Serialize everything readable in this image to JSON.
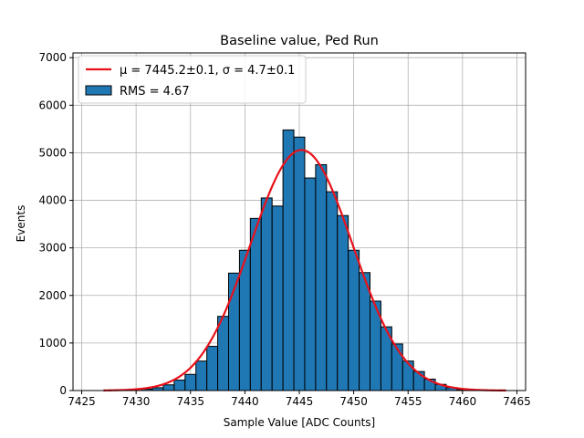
{
  "chart_data": {
    "type": "bar",
    "title": "Baseline value, Ped Run",
    "xlabel": "Sample Value [ADC Counts]",
    "ylabel": "Events",
    "xlim": [
      7424.2,
      7465.8
    ],
    "ylim": [
      0,
      7100
    ],
    "xticks": [
      7425,
      7430,
      7435,
      7440,
      7445,
      7450,
      7455,
      7460,
      7465
    ],
    "yticks": [
      0,
      1000,
      2000,
      3000,
      4000,
      5000,
      6000,
      7000
    ],
    "grid": true,
    "legend_position": "upper-left",
    "bin_width": 1,
    "bins": [
      {
        "x": 7431,
        "y": 30
      },
      {
        "x": 7432,
        "y": 60
      },
      {
        "x": 7433,
        "y": 120
      },
      {
        "x": 7434,
        "y": 220
      },
      {
        "x": 7435,
        "y": 340
      },
      {
        "x": 7436,
        "y": 620
      },
      {
        "x": 7437,
        "y": 930
      },
      {
        "x": 7438,
        "y": 1560
      },
      {
        "x": 7439,
        "y": 2470
      },
      {
        "x": 7440,
        "y": 2950
      },
      {
        "x": 7441,
        "y": 3620
      },
      {
        "x": 7442,
        "y": 4050
      },
      {
        "x": 7443,
        "y": 3880
      },
      {
        "x": 7444,
        "y": 5480
      },
      {
        "x": 7445,
        "y": 5330
      },
      {
        "x": 7446,
        "y": 4470
      },
      {
        "x": 7447,
        "y": 4750
      },
      {
        "x": 7448,
        "y": 4180
      },
      {
        "x": 7449,
        "y": 3680
      },
      {
        "x": 7450,
        "y": 2950
      },
      {
        "x": 7451,
        "y": 2480
      },
      {
        "x": 7452,
        "y": 1880
      },
      {
        "x": 7453,
        "y": 1340
      },
      {
        "x": 7454,
        "y": 980
      },
      {
        "x": 7455,
        "y": 620
      },
      {
        "x": 7456,
        "y": 400
      },
      {
        "x": 7457,
        "y": 240
      },
      {
        "x": 7458,
        "y": 130
      },
      {
        "x": 7459,
        "y": 60
      },
      {
        "x": 7460,
        "y": 20
      }
    ],
    "fit": {
      "mu": 7445.2,
      "sigma": 4.7,
      "peak": 5060,
      "x_range": [
        7427,
        7464
      ]
    },
    "legend": [
      {
        "label": "$\\mu = 7445.2{\\pm}0.1,\\,\\sigma = 4.7{\\pm}0.1$",
        "display": "μ = 7445.2±0.1, σ = 4.7±0.1",
        "kind": "line",
        "color": "#e8111a"
      },
      {
        "label": "RMS = 4.67",
        "kind": "patch",
        "color": "#1f77b4"
      }
    ],
    "colors": {
      "bar_fill": "#1f77b4",
      "bar_edge": "#000000",
      "fit_line": "#e8111a",
      "grid": "#b0b0b0"
    }
  }
}
